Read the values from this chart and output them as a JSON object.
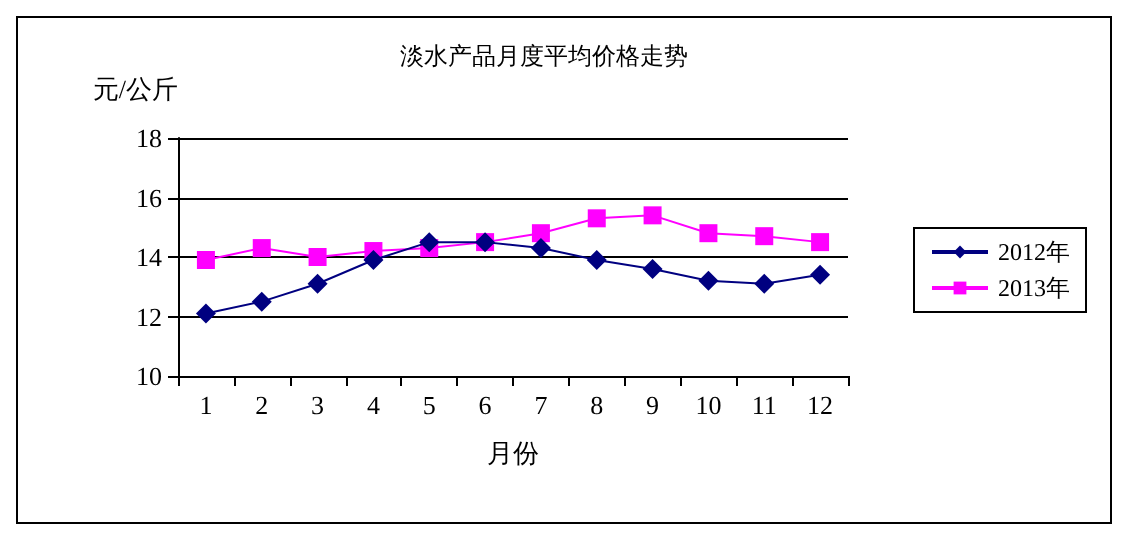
{
  "chart_data": {
    "type": "line",
    "title": "淡水产品月度平均价格走势",
    "ylabel": "元/公斤",
    "xlabel": "月份",
    "categories": [
      "1",
      "2",
      "3",
      "4",
      "5",
      "6",
      "7",
      "8",
      "9",
      "10",
      "11",
      "12"
    ],
    "series": [
      {
        "name": "2012年",
        "color": "#000080",
        "marker": "diamond",
        "values": [
          12.1,
          12.5,
          13.1,
          13.9,
          14.5,
          14.5,
          14.3,
          13.9,
          13.6,
          13.2,
          13.1,
          13.4
        ]
      },
      {
        "name": "2013年",
        "color": "#ff00ff",
        "marker": "square",
        "values": [
          13.9,
          14.3,
          14.0,
          14.2,
          14.3,
          14.5,
          14.8,
          15.3,
          15.4,
          14.8,
          14.7,
          14.5
        ]
      }
    ],
    "ylim": [
      10,
      18
    ],
    "yticks": [
      10,
      12,
      14,
      16,
      18
    ],
    "grid": "y",
    "legend": "right"
  }
}
